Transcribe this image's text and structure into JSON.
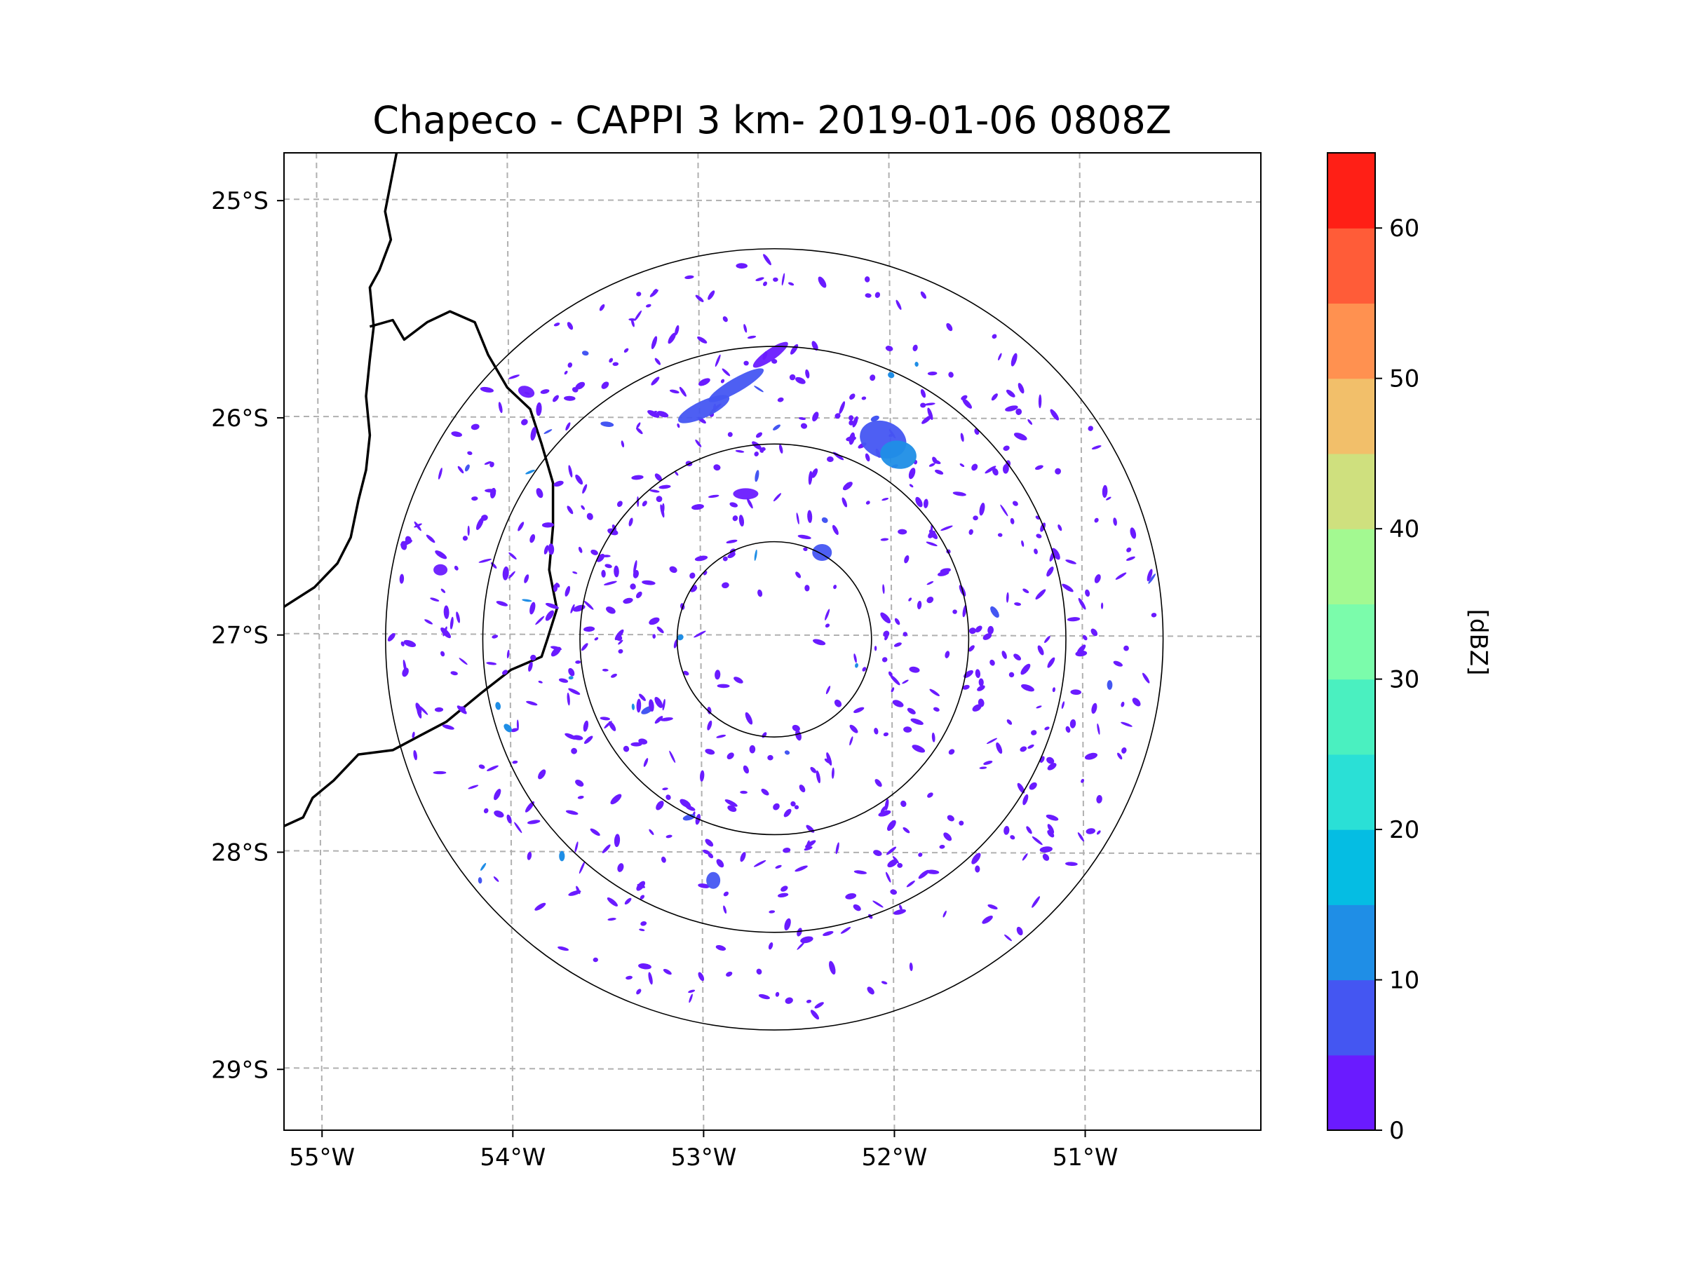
{
  "chart_data": {
    "type": "heatmap",
    "title": "Chapeco - CAPPI 3 km- 2019-01-06 0808Z",
    "xlabel": "",
    "ylabel": "",
    "x_ticks": [
      "55°W",
      "54°W",
      "53°W",
      "52°W",
      "51°W"
    ],
    "x_tick_values": [
      -55,
      -54,
      -53,
      -52,
      -51
    ],
    "y_ticks": [
      "25°S",
      "26°S",
      "27°S",
      "28°S",
      "29°S"
    ],
    "y_tick_values": [
      -25,
      -26,
      -27,
      -28,
      -29
    ],
    "xlim": [
      -55.17,
      -50.05
    ],
    "ylim": [
      -29.28,
      -24.78
    ],
    "grid": true,
    "radar_center": {
      "lon": -52.6,
      "lat": -27.02
    },
    "range_rings_km": [
      50,
      100,
      150,
      200
    ],
    "colorbar": {
      "label": "[dBZ]",
      "ticks": [
        "0",
        "10",
        "20",
        "30",
        "40",
        "50",
        "60"
      ],
      "tick_values": [
        0,
        10,
        20,
        30,
        40,
        50,
        60
      ],
      "range": [
        0,
        65
      ],
      "bounds": [
        0,
        5,
        10,
        15,
        20,
        25,
        30,
        35,
        40,
        45,
        50,
        55,
        60,
        65
      ],
      "colors": [
        "#6a1bff",
        "#4456f2",
        "#1f8ee6",
        "#05bde3",
        "#2ae0d6",
        "#4af0c0",
        "#7bfcab",
        "#a3f991",
        "#cfe07e",
        "#f2bf6a",
        "#ff9150",
        "#ff5c38",
        "#ff1f16"
      ]
    },
    "echo_summary": {
      "dominant_range_dbz": [
        0,
        5
      ],
      "max_observed_dbz_approx": 15
    }
  }
}
